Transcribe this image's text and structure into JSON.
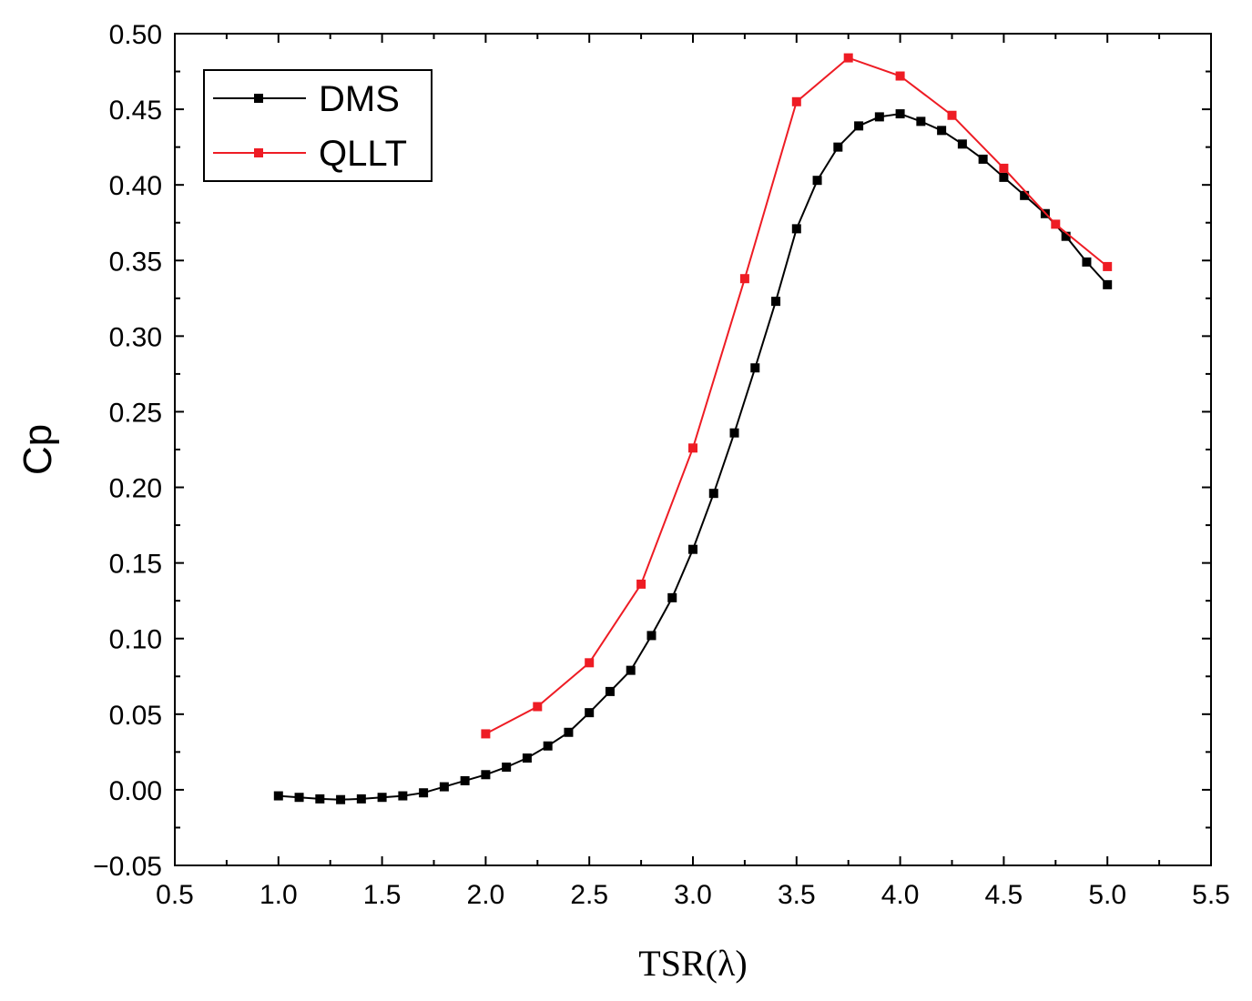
{
  "chart_data": {
    "type": "line",
    "title": "",
    "xlabel": "TSR(λ)",
    "ylabel": "Cp",
    "xlim": [
      0.5,
      5.5
    ],
    "ylim": [
      -0.05,
      0.5
    ],
    "x_ticks": [
      "0.5",
      "1.0",
      "1.5",
      "2.0",
      "2.5",
      "3.0",
      "3.5",
      "4.0",
      "4.5",
      "5.0",
      "5.5"
    ],
    "y_ticks": [
      "−0.05",
      "0.00",
      "0.05",
      "0.10",
      "0.15",
      "0.20",
      "0.25",
      "0.30",
      "0.35",
      "0.40",
      "0.45",
      "0.50"
    ],
    "grid": false,
    "legend_position": "top-left",
    "series": [
      {
        "name": "DMS",
        "color": "#000000",
        "x": [
          1.0,
          1.1,
          1.2,
          1.3,
          1.4,
          1.5,
          1.6,
          1.7,
          1.8,
          1.9,
          2.0,
          2.1,
          2.2,
          2.3,
          2.4,
          2.5,
          2.6,
          2.7,
          2.8,
          2.9,
          3.0,
          3.1,
          3.2,
          3.3,
          3.4,
          3.5,
          3.6,
          3.7,
          3.8,
          3.9,
          4.0,
          4.1,
          4.2,
          4.3,
          4.4,
          4.5,
          4.6,
          4.7,
          4.8,
          4.9,
          5.0
        ],
        "y": [
          -0.004,
          -0.005,
          -0.006,
          -0.0065,
          -0.006,
          -0.005,
          -0.004,
          -0.002,
          0.002,
          0.006,
          0.01,
          0.015,
          0.021,
          0.029,
          0.038,
          0.051,
          0.065,
          0.079,
          0.102,
          0.127,
          0.159,
          0.196,
          0.236,
          0.279,
          0.323,
          0.371,
          0.403,
          0.425,
          0.439,
          0.445,
          0.447,
          0.442,
          0.436,
          0.427,
          0.417,
          0.405,
          0.393,
          0.381,
          0.366,
          0.349,
          0.334
        ]
      },
      {
        "name": "QLLT",
        "color": "#ee1c24",
        "x": [
          2.0,
          2.25,
          2.5,
          2.75,
          3.0,
          3.25,
          3.5,
          3.75,
          4.0,
          4.25,
          4.5,
          4.75,
          5.0
        ],
        "y": [
          0.037,
          0.055,
          0.084,
          0.136,
          0.226,
          0.338,
          0.455,
          0.484,
          0.472,
          0.446,
          0.411,
          0.374,
          0.346
        ]
      }
    ]
  }
}
